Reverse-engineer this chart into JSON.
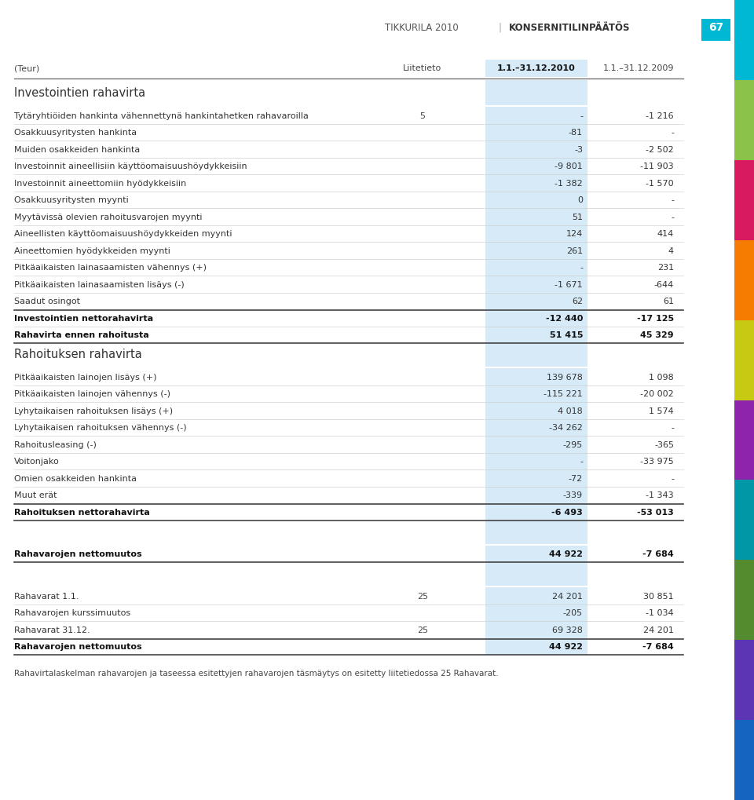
{
  "page_title_left": "TIKKURILA 2010",
  "page_title_right": "KONSERNITILINPÄÄTÖS",
  "page_num": "67",
  "header_col0": "(Teur)",
  "header_col1": "Liitetieto",
  "header_col2": "1.1.–31.12.2010",
  "header_col3": "1.1.–31.12.2009",
  "section1_title": "Investointien rahavirta",
  "section2_title": "Rahoituksen rahavirta",
  "sidebar_colors": [
    "#00b8d4",
    "#8bc34a",
    "#d81b60",
    "#f57c00",
    "#c6ca12",
    "#8e24aa",
    "#0097a7",
    "#558b2f",
    "#5c35b5",
    "#1565c0"
  ],
  "col2_bg": "#d6eaf8",
  "rows": [
    {
      "label": "Tytäryhtiöiden hankinta vähennettynä hankintahetken rahavaroilla",
      "note": "5",
      "v2010": "-",
      "v2009": "-1 216",
      "bold": false,
      "thick_above": false,
      "thick_below": false,
      "is_break": false,
      "section_title": ""
    },
    {
      "label": "Osakkuusyritysten hankinta",
      "note": "",
      "v2010": "-81",
      "v2009": "-",
      "bold": false,
      "thick_above": false,
      "thick_below": false,
      "is_break": false,
      "section_title": ""
    },
    {
      "label": "Muiden osakkeiden hankinta",
      "note": "",
      "v2010": "-3",
      "v2009": "-2 502",
      "bold": false,
      "thick_above": false,
      "thick_below": false,
      "is_break": false,
      "section_title": ""
    },
    {
      "label": "Investoinnit aineellisiin käyttöomaisuushöydykkeisiin",
      "note": "",
      "v2010": "-9 801",
      "v2009": "-11 903",
      "bold": false,
      "thick_above": false,
      "thick_below": false,
      "is_break": false,
      "section_title": ""
    },
    {
      "label": "Investoinnit aineettomiin hyödykkeisiin",
      "note": "",
      "v2010": "-1 382",
      "v2009": "-1 570",
      "bold": false,
      "thick_above": false,
      "thick_below": false,
      "is_break": false,
      "section_title": ""
    },
    {
      "label": "Osakkuusyritysten myynti",
      "note": "",
      "v2010": "0",
      "v2009": "-",
      "bold": false,
      "thick_above": false,
      "thick_below": false,
      "is_break": false,
      "section_title": ""
    },
    {
      "label": "Myytävissä olevien rahoitusvarojen myynti",
      "note": "",
      "v2010": "51",
      "v2009": "-",
      "bold": false,
      "thick_above": false,
      "thick_below": false,
      "is_break": false,
      "section_title": ""
    },
    {
      "label": "Aineellisten käyttöomaisuushöydykkeiden myynti",
      "note": "",
      "v2010": "124",
      "v2009": "414",
      "bold": false,
      "thick_above": false,
      "thick_below": false,
      "is_break": false,
      "section_title": ""
    },
    {
      "label": "Aineettomien hyödykkeiden myynti",
      "note": "",
      "v2010": "261",
      "v2009": "4",
      "bold": false,
      "thick_above": false,
      "thick_below": false,
      "is_break": false,
      "section_title": ""
    },
    {
      "label": "Pitkäaikaisten lainasaamisten vähennys (+)",
      "note": "",
      "v2010": "-",
      "v2009": "231",
      "bold": false,
      "thick_above": false,
      "thick_below": false,
      "is_break": false,
      "section_title": ""
    },
    {
      "label": "Pitkäaikaisten lainasaamisten lisäys (-)",
      "note": "",
      "v2010": "-1 671",
      "v2009": "-644",
      "bold": false,
      "thick_above": false,
      "thick_below": false,
      "is_break": false,
      "section_title": ""
    },
    {
      "label": "Saadut osingot",
      "note": "",
      "v2010": "62",
      "v2009": "61",
      "bold": false,
      "thick_above": false,
      "thick_below": false,
      "is_break": false,
      "section_title": ""
    },
    {
      "label": "Investointien nettorahavirta",
      "note": "",
      "v2010": "-12 440",
      "v2009": "-17 125",
      "bold": true,
      "thick_above": true,
      "thick_below": false,
      "is_break": false,
      "section_title": ""
    },
    {
      "label": "Rahavirta ennen rahoitusta",
      "note": "",
      "v2010": "51 415",
      "v2009": "45 329",
      "bold": true,
      "thick_above": false,
      "thick_below": true,
      "is_break": false,
      "section_title": ""
    },
    {
      "label": "",
      "note": "",
      "v2010": "",
      "v2009": "",
      "bold": false,
      "thick_above": false,
      "thick_below": false,
      "is_break": true,
      "section_title": "Rahoituksen rahavirta"
    },
    {
      "label": "Pitkäaikaisten lainojen lisäys (+)",
      "note": "",
      "v2010": "139 678",
      "v2009": "1 098",
      "bold": false,
      "thick_above": false,
      "thick_below": false,
      "is_break": false,
      "section_title": ""
    },
    {
      "label": "Pitkäaikaisten lainojen vähennys (-)",
      "note": "",
      "v2010": "-115 221",
      "v2009": "-20 002",
      "bold": false,
      "thick_above": false,
      "thick_below": false,
      "is_break": false,
      "section_title": ""
    },
    {
      "label": "Lyhytaikaisen rahoituksen lisäys (+)",
      "note": "",
      "v2010": "4 018",
      "v2009": "1 574",
      "bold": false,
      "thick_above": false,
      "thick_below": false,
      "is_break": false,
      "section_title": ""
    },
    {
      "label": "Lyhytaikaisen rahoituksen vähennys (-)",
      "note": "",
      "v2010": "-34 262",
      "v2009": "-",
      "bold": false,
      "thick_above": false,
      "thick_below": false,
      "is_break": false,
      "section_title": ""
    },
    {
      "label": "Rahoitusleasing (-)",
      "note": "",
      "v2010": "-295",
      "v2009": "-365",
      "bold": false,
      "thick_above": false,
      "thick_below": false,
      "is_break": false,
      "section_title": ""
    },
    {
      "label": "Voitonjako",
      "note": "",
      "v2010": "-",
      "v2009": "-33 975",
      "bold": false,
      "thick_above": false,
      "thick_below": false,
      "is_break": false,
      "section_title": ""
    },
    {
      "label": "Omien osakkeiden hankinta",
      "note": "",
      "v2010": "-72",
      "v2009": "-",
      "bold": false,
      "thick_above": false,
      "thick_below": false,
      "is_break": false,
      "section_title": ""
    },
    {
      "label": "Muut erät",
      "note": "",
      "v2010": "-339",
      "v2009": "-1 343",
      "bold": false,
      "thick_above": false,
      "thick_below": false,
      "is_break": false,
      "section_title": ""
    },
    {
      "label": "Rahoituksen nettorahavirta",
      "note": "",
      "v2010": "-6 493",
      "v2009": "-53 013",
      "bold": true,
      "thick_above": true,
      "thick_below": true,
      "is_break": false,
      "section_title": ""
    },
    {
      "label": "",
      "note": "",
      "v2010": "",
      "v2009": "",
      "bold": false,
      "thick_above": false,
      "thick_below": false,
      "is_break": true,
      "section_title": ""
    },
    {
      "label": "Rahavarojen nettomuutos",
      "note": "",
      "v2010": "44 922",
      "v2009": "-7 684",
      "bold": true,
      "thick_above": false,
      "thick_below": true,
      "is_break": false,
      "section_title": ""
    },
    {
      "label": "",
      "note": "",
      "v2010": "",
      "v2009": "",
      "bold": false,
      "thick_above": false,
      "thick_below": false,
      "is_break": true,
      "section_title": ""
    },
    {
      "label": "Rahavarat 1.1.",
      "note": "25",
      "v2010": "24 201",
      "v2009": "30 851",
      "bold": false,
      "thick_above": false,
      "thick_below": false,
      "is_break": false,
      "section_title": ""
    },
    {
      "label": "Rahavarojen kurssimuutos",
      "note": "",
      "v2010": "-205",
      "v2009": "-1 034",
      "bold": false,
      "thick_above": false,
      "thick_below": false,
      "is_break": false,
      "section_title": ""
    },
    {
      "label": "Rahavarat 31.12.",
      "note": "25",
      "v2010": "69 328",
      "v2009": "24 201",
      "bold": false,
      "thick_above": false,
      "thick_below": false,
      "is_break": false,
      "section_title": ""
    },
    {
      "label": "Rahavarojen nettomuutos",
      "note": "",
      "v2010": "44 922",
      "v2009": "-7 684",
      "bold": true,
      "thick_above": true,
      "thick_below": true,
      "is_break": false,
      "section_title": ""
    }
  ],
  "footer": "Rahavirtalaskelman rahavarojen ja taseessa esitettyjen rahavarojen täsmäytys on esitetty liitetiedossa 25 Rahavarat."
}
